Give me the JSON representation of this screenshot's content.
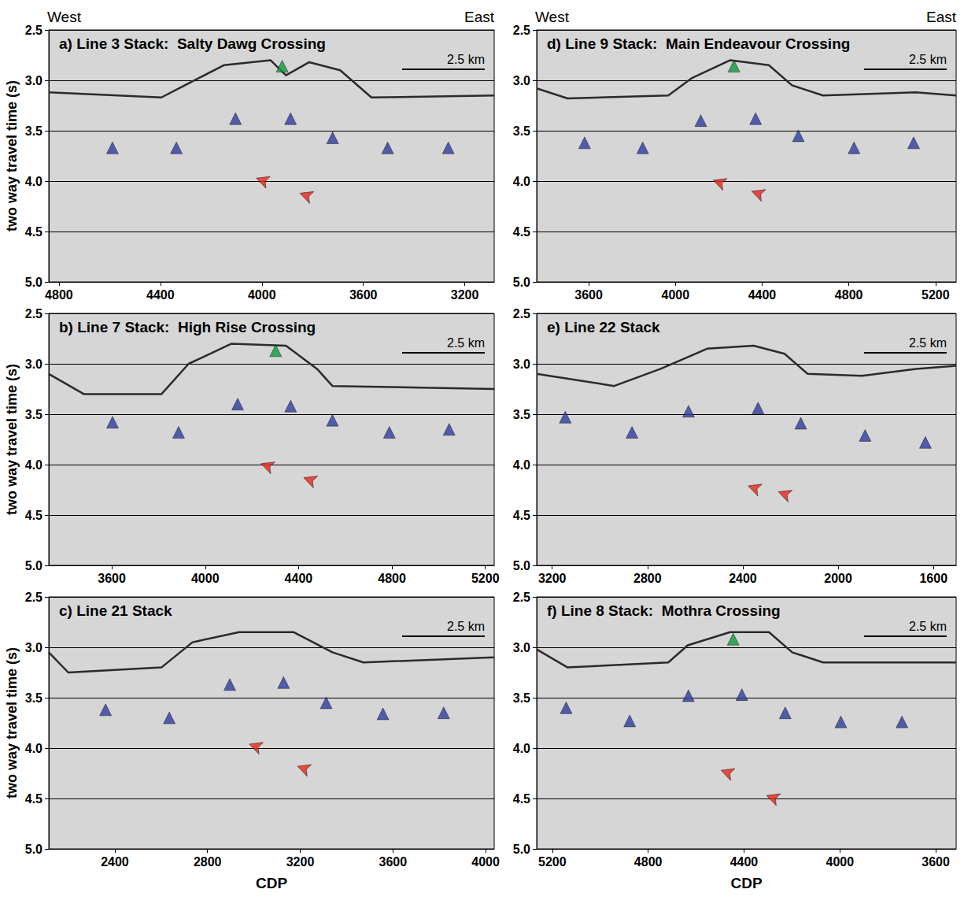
{
  "chart_data": [
    {
      "type": "scatter",
      "title": "a) Line 3 Stack:  Salty Dawg Crossing",
      "annotations": [
        "West",
        "East"
      ],
      "scale_bar": "2.5 km",
      "ylabel": "two way travel time (s)",
      "xlim": [
        4840,
        3084
      ],
      "xticks": [
        4800,
        4400,
        4000,
        3600,
        3200
      ],
      "ylim": [
        5.0,
        2.5
      ],
      "yticks": [
        {
          "value": 5.0,
          "label": "5.0"
        },
        4.5,
        {
          "value": 4.0,
          "label": "4.0"
        },
        3.5,
        {
          "value": 3.0,
          "label": "3.0"
        },
        2.5
      ],
      "grid": true,
      "series": [
        {
          "type": "line",
          "color": "#2b2b2b",
          "x": [
            4840,
            4396,
            4304,
            4150,
            3966,
            3905,
            3813,
            3691,
            3568,
            3084
          ],
          "values": [
            3.12,
            3.17,
            3.05,
            2.85,
            2.8,
            2.95,
            2.82,
            2.9,
            3.17,
            3.15
          ]
        },
        {
          "type": "scatter",
          "marker": "triangle",
          "color": "#2e3d9e",
          "x": [
            4589,
            4337,
            4104,
            3887,
            3721,
            3504,
            3265
          ],
          "values": [
            3.67,
            3.67,
            3.38,
            3.38,
            3.57,
            3.67,
            3.67
          ]
        },
        {
          "type": "scatter",
          "marker": "arrow",
          "color": "#e8261c",
          "x": [
            4022,
            3850
          ],
          "values": [
            3.97,
            4.12
          ]
        },
        {
          "type": "scatter",
          "marker": "triangle",
          "color": "#0c9a3c",
          "x": [
            3920
          ],
          "values": [
            2.86
          ]
        }
      ]
    },
    {
      "type": "scatter",
      "title": "b) Line 7 Stack:  High Rise Crossing",
      "scale_bar": "2.5 km",
      "ylabel": "two way travel time (s)",
      "xlim": [
        3330,
        5238
      ],
      "xticks": [
        3600,
        4000,
        4400,
        4800,
        5200
      ],
      "ylim": [
        5.0,
        2.5
      ],
      "yticks": [
        {
          "value": 5.0,
          "label": "5.0"
        },
        4.5,
        {
          "value": 4.0,
          "label": "4.0"
        },
        3.5,
        {
          "value": 3.0,
          "label": "3.0"
        },
        2.5
      ],
      "grid": true,
      "series": [
        {
          "type": "line",
          "color": "#2b2b2b",
          "x": [
            3330,
            3480,
            3813,
            3929,
            4113,
            4346,
            4479,
            4545,
            5238
          ],
          "values": [
            3.1,
            3.3,
            3.3,
            3.0,
            2.8,
            2.82,
            3.05,
            3.22,
            3.25
          ]
        },
        {
          "type": "scatter",
          "marker": "triangle",
          "color": "#2e3d9e",
          "x": [
            3603,
            3886,
            4139,
            4366,
            4545,
            4789,
            5045
          ],
          "values": [
            3.58,
            3.68,
            3.4,
            3.42,
            3.56,
            3.68,
            3.65
          ]
        },
        {
          "type": "scatter",
          "marker": "arrow",
          "color": "#e8261c",
          "x": [
            4239,
            4422
          ],
          "values": [
            3.99,
            4.13
          ]
        },
        {
          "type": "scatter",
          "marker": "triangle",
          "color": "#0c9a3c",
          "x": [
            4302
          ],
          "values": [
            2.87
          ]
        }
      ]
    },
    {
      "type": "scatter",
      "title": "c) Line 21 Stack",
      "scale_bar": "2.5 km",
      "xlabel": "CDP",
      "ylabel": "two way travel time (s)",
      "xlim": [
        2115,
        4037
      ],
      "xticks": [
        2400,
        2800,
        3200,
        3600,
        4000
      ],
      "ylim": [
        5.0,
        2.5
      ],
      "yticks": [
        {
          "value": 5.0,
          "label": "5.0"
        },
        4.5,
        {
          "value": 4.0,
          "label": "4.0"
        },
        3.5,
        {
          "value": 3.0,
          "label": "3.0"
        },
        2.5
      ],
      "grid": true,
      "series": [
        {
          "type": "line",
          "color": "#2b2b2b",
          "x": [
            2115,
            2199,
            2601,
            2735,
            2937,
            3172,
            3339,
            3473,
            4037
          ],
          "values": [
            3.05,
            3.25,
            3.2,
            2.95,
            2.85,
            2.85,
            3.05,
            3.15,
            3.1
          ]
        },
        {
          "type": "scatter",
          "marker": "triangle",
          "color": "#2e3d9e",
          "x": [
            2360,
            2635,
            2896,
            3128,
            3312,
            3557,
            3819
          ],
          "values": [
            3.62,
            3.7,
            3.37,
            3.35,
            3.55,
            3.66,
            3.65
          ]
        },
        {
          "type": "scatter",
          "marker": "arrow",
          "color": "#e8261c",
          "x": [
            2980,
            3188
          ],
          "values": [
            3.96,
            4.18
          ]
        }
      ]
    },
    {
      "type": "scatter",
      "title": "d) Line 9 Stack:  Main Endeavour Crossing",
      "annotations": [
        "West",
        "East"
      ],
      "scale_bar": "2.5 km",
      "xlim": [
        3360,
        5295
      ],
      "xticks": [
        3600,
        4000,
        4400,
        4800,
        5200
      ],
      "ylim": [
        5.0,
        2.5
      ],
      "yticks": [
        {
          "value": 5.0,
          "label": "5.0"
        },
        4.5,
        {
          "value": 4.0,
          "label": "4.0"
        },
        3.5,
        {
          "value": 3.0,
          "label": "3.0"
        },
        2.5
      ],
      "grid": true,
      "series": [
        {
          "type": "line",
          "color": "#2b2b2b",
          "x": [
            3360,
            3503,
            3967,
            4074,
            4253,
            4431,
            4538,
            4681,
            5109,
            5295
          ],
          "values": [
            3.08,
            3.18,
            3.15,
            2.98,
            2.8,
            2.85,
            3.05,
            3.15,
            3.12,
            3.15
          ]
        },
        {
          "type": "scatter",
          "marker": "triangle",
          "color": "#2e3d9e",
          "x": [
            3581,
            3849,
            4117,
            4370,
            4567,
            4824,
            5099
          ],
          "values": [
            3.62,
            3.67,
            3.4,
            3.38,
            3.55,
            3.67,
            3.62
          ]
        },
        {
          "type": "scatter",
          "marker": "arrow",
          "color": "#e8261c",
          "x": [
            4174,
            4352
          ],
          "values": [
            3.99,
            4.1
          ]
        },
        {
          "type": "scatter",
          "marker": "triangle",
          "color": "#0c9a3c",
          "x": [
            4270
          ],
          "values": [
            2.86
          ]
        }
      ]
    },
    {
      "type": "scatter",
      "title": "e) Line 22 Stack",
      "scale_bar": "2.5 km",
      "xlim": [
        3265,
        1505
      ],
      "xticks": [
        3200,
        2800,
        2400,
        2000,
        1600
      ],
      "ylim": [
        5.0,
        2.5
      ],
      "yticks": [
        {
          "value": 5.0,
          "label": "5.0"
        },
        4.5,
        {
          "value": 4.0,
          "label": "4.0"
        },
        3.5,
        {
          "value": 3.0,
          "label": "3.0"
        },
        2.5
      ],
      "grid": true,
      "series": [
        {
          "type": "line",
          "color": "#2b2b2b",
          "x": [
            3265,
            2940,
            2745,
            2550,
            2355,
            2225,
            2128,
            1900,
            1673,
            1505
          ],
          "values": [
            3.1,
            3.22,
            3.05,
            2.85,
            2.82,
            2.9,
            3.1,
            3.12,
            3.05,
            3.02
          ]
        },
        {
          "type": "scatter",
          "marker": "triangle",
          "color": "#2e3d9e",
          "x": [
            3145,
            2865,
            2628,
            2336,
            2157,
            1887,
            1634
          ],
          "values": [
            3.53,
            3.68,
            3.47,
            3.44,
            3.59,
            3.71,
            3.78
          ]
        },
        {
          "type": "scatter",
          "marker": "arrow",
          "color": "#e8261c",
          "x": [
            2378,
            2251
          ],
          "values": [
            4.21,
            4.27
          ]
        }
      ]
    },
    {
      "type": "scatter",
      "title": "f) Line 8 Stack:  Mothra Crossing",
      "scale_bar": "2.5 km",
      "xlabel": "CDP",
      "xlim": [
        5265,
        3515
      ],
      "xticks": [
        5200,
        4800,
        4400,
        4000,
        3600
      ],
      "ylim": [
        5.0,
        2.5
      ],
      "yticks": [
        {
          "value": 5.0,
          "label": "5.0"
        },
        4.5,
        {
          "value": 4.0,
          "label": "4.0"
        },
        3.5,
        {
          "value": 3.0,
          "label": "3.0"
        },
        2.5
      ],
      "grid": true,
      "series": [
        {
          "type": "line",
          "color": "#2b2b2b",
          "x": [
            5265,
            5136,
            4716,
            4635,
            4458,
            4296,
            4199,
            4070,
            3515
          ],
          "values": [
            3.02,
            3.2,
            3.15,
            2.98,
            2.85,
            2.85,
            3.05,
            3.15,
            3.15
          ]
        },
        {
          "type": "scatter",
          "marker": "triangle",
          "color": "#2e3d9e",
          "x": [
            5142,
            4877,
            4632,
            4409,
            4228,
            3996,
            3741
          ],
          "values": [
            3.6,
            3.73,
            3.48,
            3.47,
            3.65,
            3.74,
            3.74
          ]
        },
        {
          "type": "scatter",
          "marker": "arrow",
          "color": "#e8261c",
          "x": [
            4496,
            4306
          ],
          "values": [
            4.22,
            4.47
          ]
        },
        {
          "type": "scatter",
          "marker": "triangle",
          "color": "#0c9a3c",
          "x": [
            4445
          ],
          "values": [
            2.92
          ]
        }
      ]
    }
  ]
}
